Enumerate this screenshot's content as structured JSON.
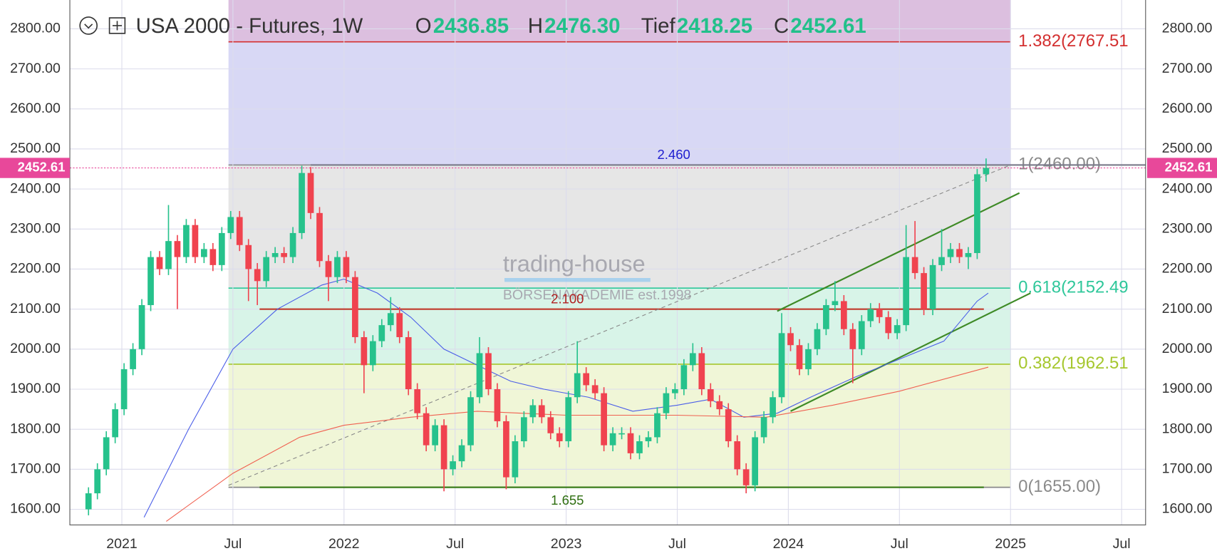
{
  "chart_data": {
    "type": "candlestick",
    "title": "USA 2000 - Futures, 1W",
    "ohlc_header": [
      {
        "label": "O",
        "value": "2436.85"
      },
      {
        "label": "H",
        "value": "2476.30"
      },
      {
        "label": "Tief",
        "value": "2418.25"
      },
      {
        "label": "C",
        "value": "2452.61"
      }
    ],
    "watermark": {
      "name": "trading-house",
      "sub": "BÖRSENAKADEMIE est.1998"
    },
    "xlim": [
      2020.766,
      2025.608
    ],
    "ylim": [
      1561,
      2872
    ],
    "xticks": [
      2021,
      {
        "value": 2021.5,
        "label": "Jul"
      },
      2022,
      {
        "value": 2022.5,
        "label": "Jul"
      },
      2023,
      {
        "value": 2023.5,
        "label": "Jul"
      },
      2024,
      {
        "value": 2024.5,
        "label": "Jul"
      },
      2025,
      {
        "value": 2025.5,
        "label": "Jul"
      }
    ],
    "yticks": [
      {
        "value": 1600,
        "label": "1600.00"
      },
      {
        "value": 1700,
        "label": "1700.00"
      },
      {
        "value": 1800,
        "label": "1800.00"
      },
      {
        "value": 1900,
        "label": "1900.00"
      },
      {
        "value": 2000,
        "label": "2000.00"
      },
      {
        "value": 2100,
        "label": "2100.00"
      },
      {
        "value": 2200,
        "label": "2200.00"
      },
      {
        "value": 2300,
        "label": "2300.00"
      },
      {
        "value": 2400,
        "label": "2400.00"
      },
      {
        "value": 2500,
        "label": "2500.00"
      },
      {
        "value": 2600,
        "label": "2600.00"
      },
      {
        "value": 2700,
        "label": "2700.00"
      },
      {
        "value": 2800,
        "label": "2800.00"
      }
    ],
    "grid": true,
    "up_color": "#26c28c",
    "down_color": "#f0434f",
    "x": [
      2020.85,
      2020.89,
      2020.93,
      2020.97,
      2021.01,
      2021.05,
      2021.09,
      2021.13,
      2021.17,
      2021.21,
      2021.25,
      2021.29,
      2021.33,
      2021.37,
      2021.41,
      2021.45,
      2021.49,
      2021.53,
      2021.57,
      2021.61,
      2021.65,
      2021.69,
      2021.73,
      2021.77,
      2021.81,
      2021.85,
      2021.89,
      2021.93,
      2021.97,
      2022.01,
      2022.05,
      2022.09,
      2022.13,
      2022.17,
      2022.21,
      2022.25,
      2022.29,
      2022.33,
      2022.37,
      2022.41,
      2022.45,
      2022.49,
      2022.53,
      2022.57,
      2022.61,
      2022.65,
      2022.69,
      2022.73,
      2022.77,
      2022.81,
      2022.85,
      2022.89,
      2022.93,
      2022.97,
      2023.01,
      2023.05,
      2023.09,
      2023.13,
      2023.17,
      2023.21,
      2023.25,
      2023.29,
      2023.33,
      2023.37,
      2023.41,
      2023.45,
      2023.49,
      2023.53,
      2023.57,
      2023.61,
      2023.65,
      2023.69,
      2023.73,
      2023.77,
      2023.81,
      2023.85,
      2023.89,
      2023.93,
      2023.97,
      2024.01,
      2024.05,
      2024.09,
      2024.13,
      2024.17,
      2024.21,
      2024.25,
      2024.29,
      2024.33,
      2024.37,
      2024.41,
      2024.45,
      2024.49,
      2024.53,
      2024.57,
      2024.61,
      2024.65,
      2024.69,
      2024.73,
      2024.77,
      2024.81,
      2024.85,
      2024.89
    ],
    "open": [
      1600,
      1640,
      1700,
      1780,
      1850,
      1950,
      2000,
      2110,
      2230,
      2200,
      2270,
      2230,
      2310,
      2230,
      2250,
      2210,
      2290,
      2330,
      2260,
      2200,
      2170,
      2230,
      2240,
      2230,
      2290,
      2440,
      2340,
      2220,
      2180,
      2230,
      2180,
      2030,
      1960,
      2020,
      2060,
      2090,
      2030,
      1900,
      1840,
      1760,
      1810,
      1700,
      1720,
      1760,
      1880,
      1990,
      1900,
      1820,
      1680,
      1770,
      1830,
      1860,
      1830,
      1790,
      1770,
      1880,
      1940,
      1910,
      1890,
      1760,
      1790,
      1790,
      1740,
      1770,
      1780,
      1840,
      1890,
      1900,
      1960,
      1990,
      1900,
      1870,
      1850,
      1770,
      1700,
      1660,
      1780,
      1830,
      1880,
      2040,
      2010,
      1950,
      2000,
      2050,
      2110,
      2120,
      2050,
      2000,
      2070,
      2100,
      2080,
      2040,
      2060,
      2230,
      2190,
      2100,
      2210,
      2230,
      2250,
      2230,
      2240,
      2436.85
    ],
    "high": [
      1655,
      1715,
      1795,
      1865,
      1965,
      2015,
      2125,
      2245,
      2245,
      2360,
      2285,
      2325,
      2325,
      2265,
      2265,
      2305,
      2345,
      2345,
      2275,
      2215,
      2245,
      2255,
      2255,
      2305,
      2458,
      2455,
      2355,
      2235,
      2245,
      2245,
      2195,
      2045,
      2035,
      2075,
      2130,
      2105,
      2045,
      1915,
      1855,
      1825,
      1825,
      1735,
      1775,
      1895,
      2030,
      2005,
      1915,
      1835,
      1785,
      1845,
      1875,
      1875,
      1845,
      1805,
      1895,
      2020,
      1955,
      1925,
      1905,
      1805,
      1805,
      1805,
      1785,
      1795,
      1855,
      1905,
      1915,
      1975,
      2015,
      2005,
      1915,
      1885,
      1865,
      1785,
      1715,
      1795,
      1845,
      1895,
      2090,
      2055,
      2025,
      2015,
      2065,
      2125,
      2170,
      2135,
      2065,
      2085,
      2115,
      2115,
      2095,
      2075,
      2310,
      2320,
      2205,
      2225,
      2300,
      2265,
      2265,
      2255,
      2450,
      2476.3
    ],
    "low": [
      1585,
      1625,
      1685,
      1765,
      1835,
      1935,
      1985,
      2095,
      2185,
      2185,
      2100,
      2215,
      2215,
      2215,
      2195,
      2195,
      2275,
      2245,
      2120,
      2110,
      2155,
      2215,
      2215,
      2215,
      2275,
      2325,
      2205,
      2120,
      2165,
      2165,
      2015,
      1890,
      1945,
      2005,
      2045,
      2015,
      1885,
      1825,
      1745,
      1745,
      1645,
      1685,
      1705,
      1745,
      1865,
      1885,
      1805,
      1650,
      1665,
      1755,
      1815,
      1815,
      1775,
      1755,
      1755,
      1865,
      1895,
      1875,
      1745,
      1745,
      1775,
      1725,
      1725,
      1755,
      1765,
      1825,
      1875,
      1885,
      1945,
      1885,
      1855,
      1835,
      1755,
      1685,
      1640,
      1645,
      1765,
      1815,
      1865,
      1995,
      1935,
      1935,
      1985,
      2035,
      2095,
      2035,
      1915,
      1985,
      2055,
      2065,
      2025,
      2025,
      2045,
      2175,
      2085,
      2085,
      2195,
      2215,
      2215,
      2200,
      2225,
      2418.25
    ],
    "close": [
      1640,
      1700,
      1780,
      1850,
      1950,
      2000,
      2110,
      2230,
      2200,
      2270,
      2230,
      2310,
      2230,
      2250,
      2210,
      2290,
      2330,
      2260,
      2200,
      2170,
      2230,
      2240,
      2230,
      2290,
      2440,
      2340,
      2220,
      2180,
      2230,
      2180,
      2030,
      1960,
      2020,
      2060,
      2090,
      2030,
      1900,
      1840,
      1760,
      1810,
      1700,
      1720,
      1760,
      1880,
      1990,
      1900,
      1820,
      1680,
      1770,
      1830,
      1860,
      1830,
      1790,
      1770,
      1880,
      1940,
      1910,
      1890,
      1760,
      1790,
      1790,
      1740,
      1770,
      1780,
      1840,
      1890,
      1900,
      1960,
      1990,
      1900,
      1870,
      1850,
      1770,
      1700,
      1660,
      1780,
      1830,
      1880,
      2040,
      2010,
      1950,
      2000,
      2050,
      2110,
      2120,
      2050,
      2000,
      2070,
      2100,
      2080,
      2040,
      2060,
      2230,
      2190,
      2100,
      2210,
      2230,
      2250,
      2230,
      2240,
      2436.85,
      2452.61
    ],
    "lines": [
      {
        "color": "#4a5de8",
        "x": [
          2021.1,
          2021.3,
          2021.5,
          2021.7,
          2021.9,
          2022.0,
          2022.15,
          2022.3,
          2022.45,
          2022.6,
          2022.75,
          2022.9,
          2023.1,
          2023.3,
          2023.5,
          2023.65,
          2023.8,
          2023.95,
          2024.1,
          2024.3,
          2024.5,
          2024.7,
          2024.85,
          2024.9
        ],
        "values": [
          1580,
          1800,
          2000,
          2100,
          2160,
          2175,
          2140,
          2080,
          2000,
          1960,
          1920,
          1900,
          1880,
          1845,
          1860,
          1875,
          1830,
          1840,
          1880,
          1930,
          1975,
          2020,
          2120,
          2140
        ]
      },
      {
        "color": "#f06050",
        "x": [
          2021.2,
          2021.5,
          2021.8,
          2022.0,
          2022.3,
          2022.6,
          2023.0,
          2023.5,
          2023.9,
          2024.2,
          2024.5,
          2024.9
        ],
        "values": [
          1570,
          1690,
          1780,
          1810,
          1830,
          1845,
          1835,
          1835,
          1830,
          1860,
          1895,
          1955
        ]
      }
    ],
    "fib_range": [
      2021.48,
      2025.0
    ],
    "fib_levels": [
      {
        "value": 1655,
        "label": "0(1655.00)",
        "color": "#8a8a8a",
        "fill": "#eef5d3"
      },
      {
        "value": 1962.51,
        "label": "0.382(1962.51",
        "color": "#a6c72e",
        "fill": "#d4f3e6"
      },
      {
        "value": 2152.49,
        "label": "0.618(2152.49",
        "color": "#2ec79a",
        "fill": "#e3e3e3"
      },
      {
        "value": 2460,
        "label": "1(2460.00)",
        "color": "#8a8a8a",
        "fill": "#d4d4f4"
      },
      {
        "value": 2767.51,
        "label": "1.382(2767.51",
        "color": "#d32f2f",
        "fill": "#d8b8dc"
      }
    ],
    "levels": [
      {
        "value": 2460,
        "label": "2.460",
        "color": "#7a7a8a",
        "label_color": "#2020d0",
        "x": [
          2021.85,
          2025.608
        ]
      },
      {
        "value": 2100,
        "label": "2.100",
        "color": "#c0392b",
        "label_color": "#b02020",
        "x": [
          2021.62,
          2024.88
        ]
      },
      {
        "value": 1655,
        "label": "1.655",
        "color": "#3a7d1a",
        "label_color": "#2e6e10",
        "x": [
          2021.62,
          2024.88
        ]
      }
    ],
    "trendlines": [
      {
        "x": [
          2021.48,
          2025.0
        ],
        "values": [
          1660,
          2460
        ],
        "color": "#888",
        "dash": true
      },
      {
        "x": [
          2023.95,
          2025.04
        ],
        "values": [
          2095,
          2390
        ],
        "color": "#3e8a26",
        "dash": false
      },
      {
        "x": [
          2024.01,
          2025.09
        ],
        "values": [
          1845,
          2140
        ],
        "color": "#3e8a26",
        "dash": false
      }
    ],
    "last_price": 2452.61,
    "last_price_color": "#e8489a"
  }
}
